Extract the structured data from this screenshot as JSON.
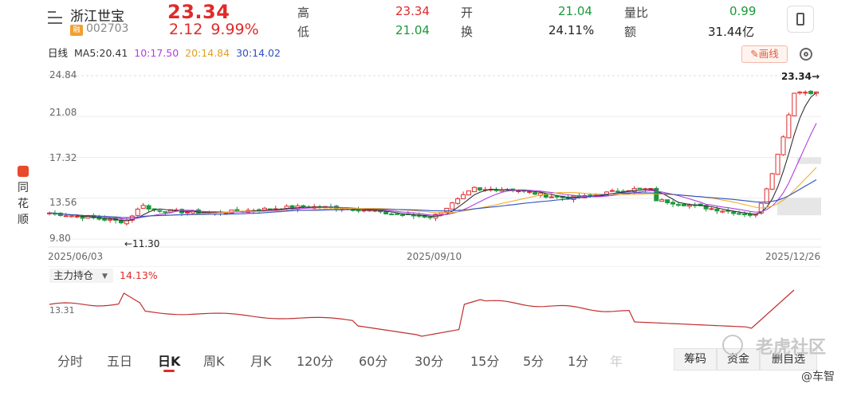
{
  "header": {
    "name": "浙江世宝",
    "code": "002703",
    "badge": "融",
    "price": "23.34",
    "change": "2.12",
    "change_pct": "9.99%",
    "high_label": "高",
    "high": "23.34",
    "low_label": "低",
    "low": "21.04",
    "open_label": "开",
    "open": "21.04",
    "turnover_label": "换",
    "turnover": "24.11%",
    "vol_ratio_label": "量比",
    "vol_ratio": "0.99",
    "amount_label": "额",
    "amount": "31.44亿"
  },
  "indicators": {
    "period": "日线",
    "ma5": "MA5:20.41",
    "ma10": "10:17.50",
    "ma20": "20:14.84",
    "ma30": "30:14.02",
    "draw_label": "画线"
  },
  "colors": {
    "up": "#e02a2a",
    "down": "#1a9a3a",
    "ma5": "#333333",
    "ma10": "#b040e0",
    "ma20": "#f0b030",
    "ma30": "#3050c0",
    "fund_line": "#c03030"
  },
  "side_logo": [
    "同",
    "花",
    "顺"
  ],
  "chart_data": [
    {
      "type": "candlestick",
      "y_ticks": [
        "24.84",
        "21.08",
        "17.32",
        "13.56",
        "9.80"
      ],
      "x_labels": [
        "2025/06/03",
        "2025/09/10",
        "2025/12/26"
      ],
      "annotations": {
        "min_marker": "←11.30",
        "max_marker": "23.34→"
      },
      "series": [
        {
          "name": "MA5",
          "value": 20.41
        },
        {
          "name": "10",
          "value": 17.5
        },
        {
          "name": "20",
          "value": 14.84
        },
        {
          "name": "30",
          "value": 14.02
        }
      ],
      "last_close": 23.34,
      "low_close": 11.3
    },
    {
      "type": "line",
      "title": "主力持仓",
      "value_label": "14.13%",
      "y_ticks": [
        "13.31"
      ]
    }
  ],
  "tabs": [
    "分时",
    "五日",
    "日K",
    "周K",
    "月K",
    "120分",
    "60分",
    "30分",
    "15分",
    "5分",
    "1分",
    "年"
  ],
  "active_tab": "日K",
  "right_buttons": [
    "筹码",
    "资金",
    "删自选"
  ],
  "watermark": "老虎社区",
  "author": "@车智"
}
